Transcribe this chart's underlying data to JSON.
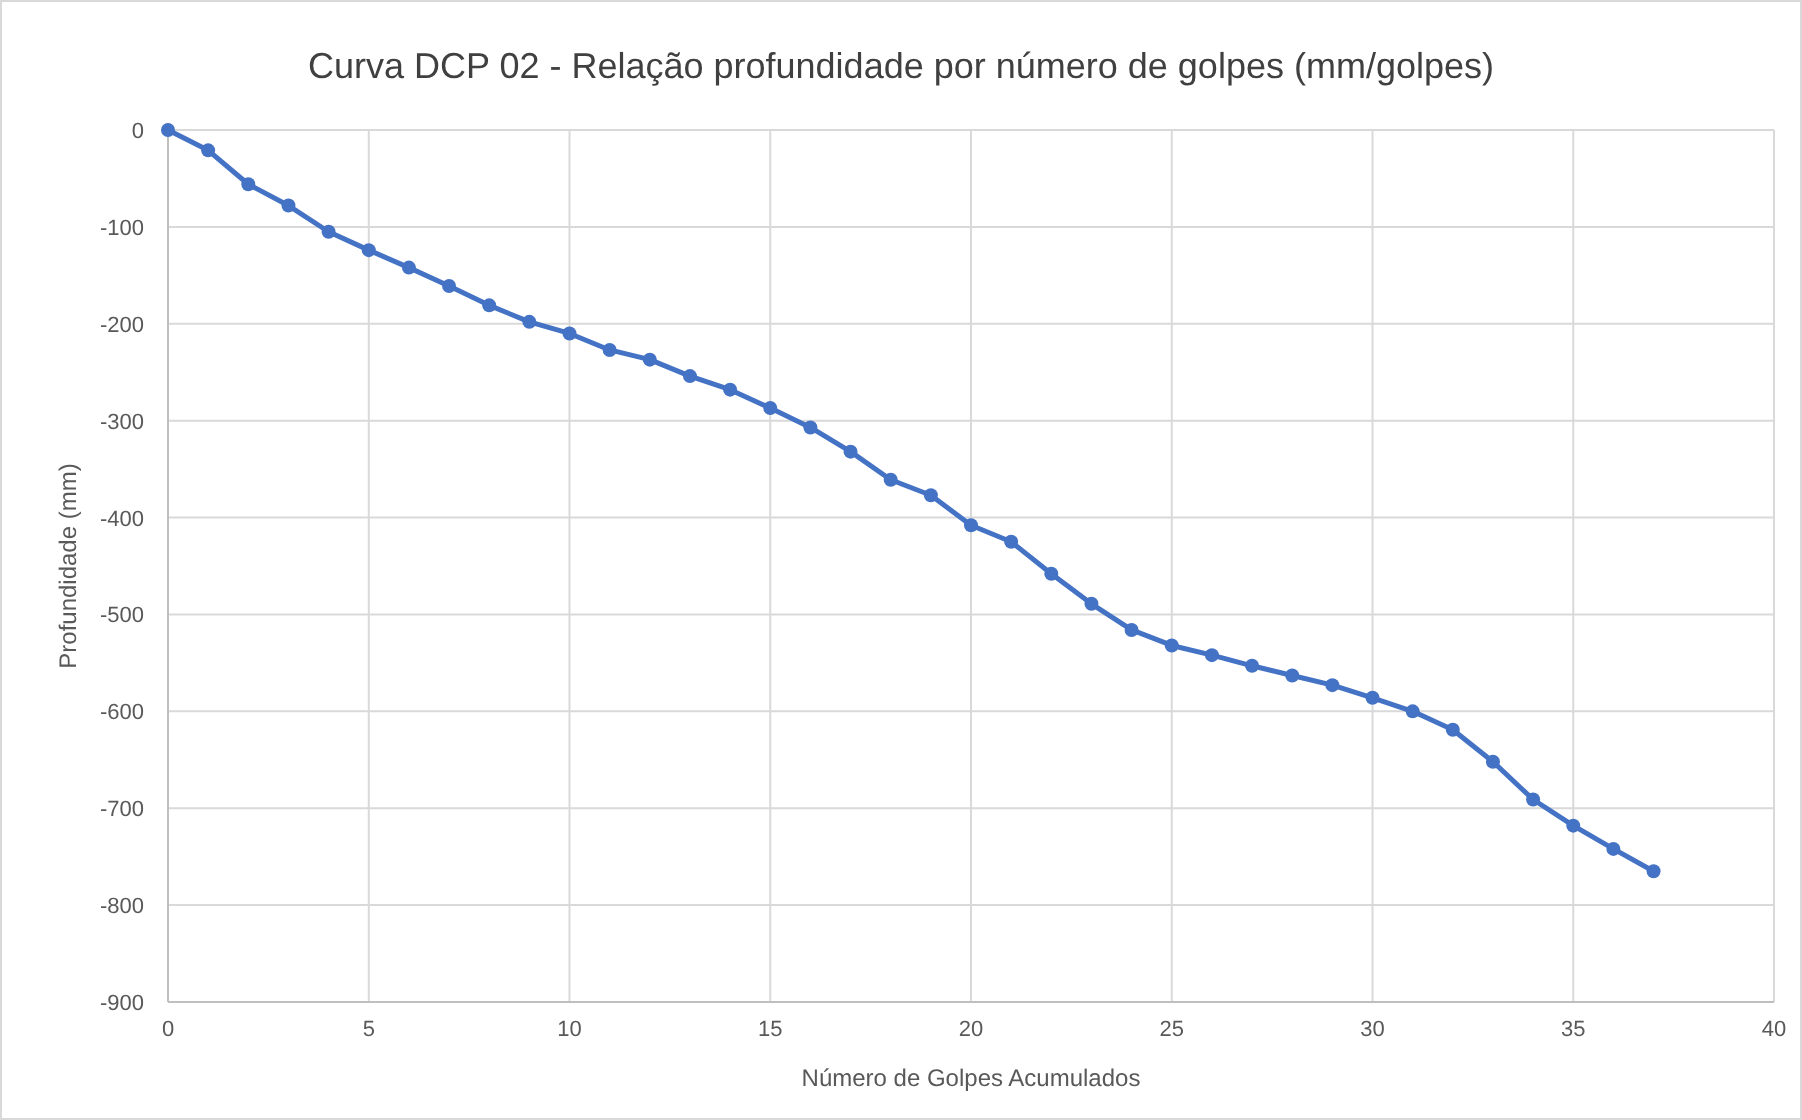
{
  "chart_data": {
    "type": "line",
    "title": "Curva DCP 02 - Relação profundidade por número de golpes (mm/golpes)",
    "xlabel": "Número de Golpes Acumulados",
    "ylabel": "Profundidade (mm)",
    "x": [
      0,
      1,
      2,
      3,
      4,
      5,
      6,
      7,
      8,
      9,
      10,
      11,
      12,
      13,
      14,
      15,
      16,
      17,
      18,
      19,
      20,
      21,
      22,
      23,
      24,
      25,
      26,
      27,
      28,
      29,
      30,
      31,
      32,
      33,
      34,
      35,
      36,
      37
    ],
    "series": [
      {
        "color": "#4472c4",
        "values": [
          0,
          -21,
          -56,
          -78,
          -105,
          -124,
          -142,
          -161,
          -181,
          -198,
          -210,
          -227,
          -237,
          -254,
          -268,
          -287,
          -307,
          -332,
          -361,
          -377,
          -408,
          -425,
          -458,
          -489,
          -516,
          -532,
          -542,
          -553,
          -563,
          -573,
          -586,
          -600,
          -619,
          -652,
          -691,
          -718,
          -742,
          -765
        ]
      }
    ],
    "xlim": [
      0,
      40
    ],
    "xticks": [
      0,
      5,
      10,
      15,
      20,
      25,
      30,
      35,
      40
    ],
    "ylim": [
      -900,
      0
    ],
    "yticks": [
      -900,
      -800,
      -700,
      -600,
      -500,
      -400,
      -300,
      -200,
      -100,
      0
    ],
    "grid": true,
    "marker": "circle",
    "line_style": "solid"
  }
}
